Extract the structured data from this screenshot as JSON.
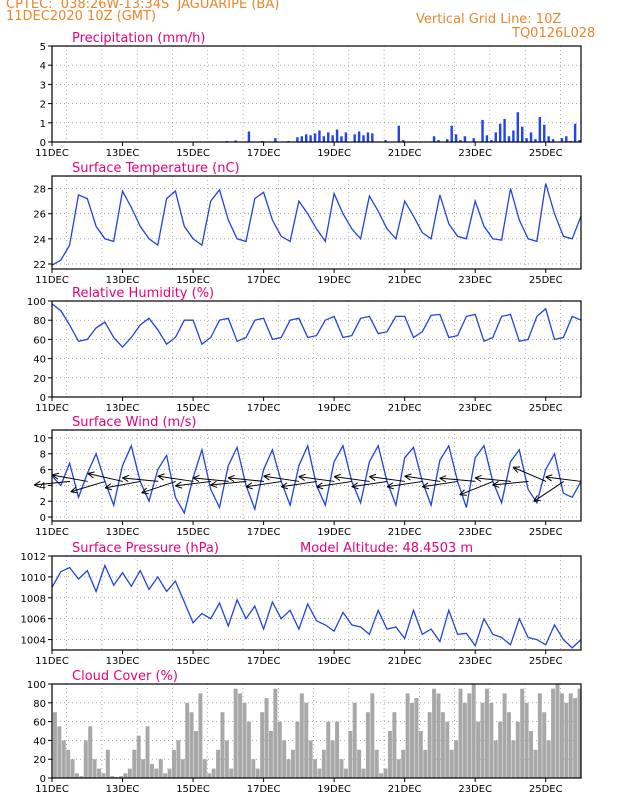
{
  "header": {
    "line1": "CPTEC:  038:26W-13:34S  JAGUARIPE (BA)",
    "line2": "11DEC2020 10Z (GMT)",
    "grid_note": "Vertical Grid Line: 10Z",
    "run_id": "TQ0126L028"
  },
  "colors": {
    "header": "#e8862a",
    "title": "#e6007e",
    "line": "#2244dd",
    "bar": "#2244ee",
    "cloud": "#a8a8a8",
    "wind_arrow": "#000000",
    "grid": "#777777"
  },
  "x_tick_labels": [
    "11DEC",
    "13DEC",
    "15DEC",
    "17DEC",
    "19DEC",
    "21DEC",
    "23DEC",
    "25DEC"
  ],
  "chart_data": [
    {
      "id": "precip",
      "type": "bar",
      "title": "Precipitation (mm/h)",
      "ylim": [
        0,
        5
      ],
      "yticks": [
        0,
        1,
        2,
        3,
        4,
        5
      ],
      "x_range_days": [
        11.0,
        26.0
      ],
      "hour_step": 3,
      "start": "11DEC2020 12Z",
      "values": [
        0,
        0,
        0,
        0,
        0,
        0,
        0,
        0,
        0,
        0,
        0,
        0,
        0,
        0,
        0,
        0,
        0,
        0,
        0,
        0,
        0,
        0,
        0,
        0,
        0,
        0,
        0.02,
        0,
        0,
        0,
        0,
        0,
        0,
        0,
        0,
        0.03,
        0,
        0,
        0,
        0.05,
        0,
        0.08,
        0,
        0,
        0.55,
        0,
        0,
        0.05,
        0,
        0,
        0.2,
        0,
        0,
        0.05,
        0,
        0.25,
        0.3,
        0.4,
        0.35,
        0.45,
        0.6,
        0.3,
        0.5,
        0.35,
        0.65,
        0.3,
        0.5,
        0,
        0.4,
        0.55,
        0.35,
        0.5,
        0.45,
        0,
        0,
        0.1,
        0,
        0,
        0.85,
        0.1,
        0,
        0,
        0,
        0,
        0,
        0,
        0.3,
        0.1,
        0,
        0.15,
        0.85,
        0.4,
        0.1,
        0.3,
        0,
        0.2,
        0,
        1.15,
        0.35,
        0.1,
        0.5,
        0.95,
        1.2,
        0.3,
        0.6,
        1.55,
        0.8,
        0.2,
        0.5,
        0.15,
        1.3,
        0.9,
        0.3,
        0.15,
        0,
        0.2,
        0.3,
        0.05,
        0.95,
        0.1,
        0.4,
        0.3,
        0.85,
        1.2,
        0.5,
        0.6,
        0.3,
        0.4,
        0.15,
        0,
        0.1,
        0,
        0.35,
        0.75,
        0.1,
        0.05,
        0,
        0,
        0,
        0,
        0,
        0
      ]
    },
    {
      "id": "temperature",
      "type": "line",
      "title": "Surface Temperature (nC)",
      "ylim": [
        21.6,
        29
      ],
      "yticks": [
        22,
        24,
        26,
        28
      ],
      "x": [
        11.0,
        11.25,
        11.5,
        11.75,
        12.0,
        12.25,
        12.5,
        12.75,
        13.0,
        13.25,
        13.5,
        13.75,
        14.0,
        14.25,
        14.5,
        14.75,
        15.0,
        15.25,
        15.5,
        15.75,
        16.0,
        16.25,
        16.5,
        16.75,
        17.0,
        17.25,
        17.5,
        17.75,
        18.0,
        18.25,
        18.5,
        18.75,
        19.0,
        19.25,
        19.5,
        19.75,
        20.0,
        20.25,
        20.5,
        20.75,
        21.0,
        21.25,
        21.5,
        21.75,
        22.0,
        22.25,
        22.5,
        22.75,
        23.0,
        23.25,
        23.5,
        23.75,
        24.0,
        24.25,
        24.5,
        24.75,
        25.0,
        25.25,
        25.5,
        25.75,
        26.0
      ],
      "y": [
        21.9,
        22.3,
        23.5,
        27.5,
        27.2,
        25.0,
        24.0,
        23.8,
        27.8,
        26.5,
        25.0,
        24.0,
        23.5,
        27.2,
        27.8,
        25.0,
        24.0,
        23.5,
        27.0,
        27.9,
        25.5,
        24.0,
        23.8,
        27.2,
        27.7,
        25.5,
        24.2,
        23.8,
        27.0,
        26.0,
        24.8,
        23.8,
        27.6,
        26.0,
        24.8,
        24.0,
        27.4,
        26.2,
        24.8,
        24.0,
        27.0,
        25.8,
        24.5,
        24.0,
        27.5,
        25.2,
        24.2,
        24.0,
        27.0,
        25.0,
        24.0,
        23.9,
        28.0,
        25.5,
        24.0,
        23.8,
        28.4,
        26.0,
        24.2,
        24.0,
        25.8
      ]
    },
    {
      "id": "humidity",
      "type": "line",
      "title": "Relative Humidity (%)",
      "ylim": [
        0,
        100
      ],
      "yticks": [
        0,
        20,
        40,
        60,
        80,
        100
      ],
      "x": [
        11.0,
        11.25,
        11.5,
        11.75,
        12.0,
        12.25,
        12.5,
        12.75,
        13.0,
        13.25,
        13.5,
        13.75,
        14.0,
        14.25,
        14.5,
        14.75,
        15.0,
        15.25,
        15.5,
        15.75,
        16.0,
        16.25,
        16.5,
        16.75,
        17.0,
        17.25,
        17.5,
        17.75,
        18.0,
        18.25,
        18.5,
        18.75,
        19.0,
        19.25,
        19.5,
        19.75,
        20.0,
        20.25,
        20.5,
        20.75,
        21.0,
        21.25,
        21.5,
        21.75,
        22.0,
        22.25,
        22.5,
        22.75,
        23.0,
        23.25,
        23.5,
        23.75,
        24.0,
        24.25,
        24.5,
        24.75,
        25.0,
        25.25,
        25.5,
        25.75,
        26.0
      ],
      "y": [
        97,
        90,
        75,
        58,
        60,
        72,
        78,
        62,
        52,
        62,
        75,
        82,
        70,
        55,
        62,
        80,
        80,
        55,
        62,
        80,
        82,
        58,
        62,
        80,
        82,
        60,
        62,
        80,
        82,
        62,
        64,
        80,
        84,
        62,
        64,
        82,
        84,
        66,
        68,
        84,
        84,
        62,
        68,
        85,
        86,
        62,
        64,
        84,
        86,
        58,
        62,
        84,
        86,
        58,
        60,
        84,
        92,
        60,
        62,
        84,
        80
      ]
    },
    {
      "id": "wind",
      "type": "line",
      "title": "Surface Wind (m/s)",
      "ylim": [
        -0.5,
        11
      ],
      "yticks": [
        0,
        2,
        4,
        6,
        8,
        10
      ],
      "x": [
        11.0,
        11.25,
        11.5,
        11.75,
        12.0,
        12.25,
        12.5,
        12.75,
        13.0,
        13.25,
        13.5,
        13.75,
        14.0,
        14.25,
        14.5,
        14.75,
        15.0,
        15.25,
        15.5,
        15.75,
        16.0,
        16.25,
        16.5,
        16.75,
        17.0,
        17.25,
        17.5,
        17.75,
        18.0,
        18.25,
        18.5,
        18.75,
        19.0,
        19.25,
        19.5,
        19.75,
        20.0,
        20.25,
        20.5,
        20.75,
        21.0,
        21.25,
        21.5,
        21.75,
        22.0,
        22.25,
        22.5,
        22.75,
        23.0,
        23.25,
        23.5,
        23.75,
        24.0,
        24.25,
        24.5,
        24.75,
        25.0,
        25.25,
        25.5,
        25.75,
        26.0
      ],
      "y": [
        5.2,
        4.0,
        6.8,
        2.5,
        5.5,
        8.0,
        4.5,
        1.5,
        6.5,
        9.0,
        4.5,
        2.0,
        6.0,
        7.8,
        2.5,
        0.5,
        5.0,
        8.5,
        3.5,
        1.2,
        6.5,
        8.8,
        4.0,
        1.0,
        6.0,
        8.5,
        4.5,
        1.5,
        6.5,
        9.0,
        4.0,
        1.5,
        7.0,
        9.0,
        4.5,
        1.8,
        7.0,
        9.0,
        4.5,
        1.5,
        7.5,
        8.8,
        4.5,
        1.5,
        7.2,
        9.0,
        4.5,
        1.2,
        7.5,
        9.0,
        4.5,
        1.8,
        7.0,
        8.5,
        3.5,
        1.8,
        6.0,
        8.0,
        3.0,
        2.5,
        4.5
      ],
      "arrow_days": [
        11.0,
        11.5,
        12.0,
        12.5,
        13.0,
        13.5,
        14.0,
        14.5,
        15.0,
        15.5,
        16.0,
        16.5,
        17.0,
        17.5,
        18.0,
        18.5,
        19.0,
        19.5,
        20.0,
        20.5,
        21.0,
        21.5,
        22.0,
        22.5,
        23.0,
        23.5,
        24.0,
        24.5,
        25.0,
        25.5
      ],
      "arrow_u": [
        -1.0,
        -1.1,
        -1.0,
        -1.1,
        -1.1,
        -1.0,
        -0.9,
        -1.0,
        -0.8,
        -1.0,
        -1.0,
        -1.0,
        -1.0,
        -1.0,
        -1.0,
        -1.1,
        -1.0,
        -1.1,
        -1.0,
        -1.1,
        -1.0,
        -1.0,
        -1.0,
        -1.1,
        -1.0,
        -1.0,
        -1.0,
        -0.7,
        -0.9,
        -0.8
      ],
      "arrow_v": [
        -0.1,
        0.2,
        -0.3,
        0.25,
        -0.2,
        0.1,
        -0.3,
        0.15,
        -0.1,
        0.1,
        -0.1,
        0.1,
        -0.15,
        0.15,
        -0.15,
        0.15,
        -0.15,
        0.15,
        -0.15,
        0.15,
        -0.15,
        0.15,
        -0.15,
        0.1,
        -0.4,
        0.1,
        -0.1,
        0.3,
        -0.6,
        0.1
      ]
    },
    {
      "id": "pressure",
      "type": "line",
      "title": "Surface Pressure (hPa)",
      "annotation": "Model Altitude: 48.4503 m",
      "ylim": [
        1003,
        1012
      ],
      "yticks": [
        1004,
        1006,
        1008,
        1010,
        1012
      ],
      "x": [
        11.0,
        11.25,
        11.5,
        11.75,
        12.0,
        12.25,
        12.5,
        12.75,
        13.0,
        13.25,
        13.5,
        13.75,
        14.0,
        14.25,
        14.5,
        14.75,
        15.0,
        15.25,
        15.5,
        15.75,
        16.0,
        16.25,
        16.5,
        16.75,
        17.0,
        17.25,
        17.5,
        17.75,
        18.0,
        18.25,
        18.5,
        18.75,
        19.0,
        19.25,
        19.5,
        19.75,
        20.0,
        20.25,
        20.5,
        20.75,
        21.0,
        21.25,
        21.5,
        21.75,
        22.0,
        22.25,
        22.5,
        22.75,
        23.0,
        23.25,
        23.5,
        23.75,
        24.0,
        24.25,
        24.5,
        24.75,
        25.0,
        25.25,
        25.5,
        25.75,
        26.0
      ],
      "y": [
        1009.0,
        1010.5,
        1010.9,
        1009.8,
        1010.6,
        1008.6,
        1011.1,
        1009.2,
        1010.4,
        1009.1,
        1010.6,
        1008.8,
        1010.0,
        1008.6,
        1009.6,
        1007.6,
        1005.6,
        1006.5,
        1006.0,
        1007.5,
        1005.3,
        1007.8,
        1006.0,
        1007.2,
        1005.0,
        1007.6,
        1006.0,
        1006.8,
        1005.0,
        1007.4,
        1005.8,
        1005.4,
        1004.8,
        1006.6,
        1005.4,
        1005.2,
        1004.5,
        1006.8,
        1005.0,
        1005.2,
        1004.1,
        1006.8,
        1004.5,
        1005.0,
        1003.8,
        1006.8,
        1004.5,
        1004.6,
        1003.4,
        1006.0,
        1004.5,
        1004.2,
        1003.5,
        1006.0,
        1004.2,
        1004.0,
        1003.5,
        1005.4,
        1004.0,
        1003.2,
        1004.0
      ]
    },
    {
      "id": "cloud",
      "type": "bar",
      "title": "Cloud Cover (%)",
      "ylim": [
        0,
        100
      ],
      "yticks": [
        0,
        20,
        40,
        60,
        80,
        100
      ],
      "x_range_days": [
        11.0,
        26.0
      ],
      "hour_step": 3,
      "start": "11DEC2020 12Z",
      "values": [
        70,
        55,
        40,
        30,
        20,
        5,
        2,
        40,
        55,
        20,
        10,
        5,
        30,
        2,
        1,
        2,
        5,
        10,
        30,
        45,
        20,
        55,
        15,
        10,
        20,
        5,
        10,
        30,
        40,
        20,
        80,
        70,
        50,
        90,
        20,
        5,
        10,
        30,
        70,
        40,
        10,
        95,
        90,
        80,
        60,
        20,
        10,
        70,
        85,
        50,
        95,
        60,
        40,
        20,
        30,
        60,
        90,
        80,
        40,
        20,
        10,
        30,
        60,
        40,
        60,
        20,
        10,
        50,
        80,
        30,
        10,
        70,
        90,
        30,
        5,
        10,
        50,
        70,
        20,
        30,
        90,
        80,
        85,
        50,
        30,
        70,
        95,
        90,
        70,
        60,
        30,
        40,
        95,
        80,
        90,
        100,
        60,
        80,
        95,
        80,
        40,
        60,
        90,
        70,
        40,
        60,
        95,
        80,
        50,
        30,
        90,
        70,
        40,
        95,
        100,
        90,
        80,
        90,
        85,
        95,
        80,
        70,
        85,
        90,
        80,
        88,
        90,
        85,
        80,
        92,
        90,
        85,
        88,
        80,
        85,
        82,
        90,
        88,
        92,
        85,
        88
      ]
    }
  ]
}
